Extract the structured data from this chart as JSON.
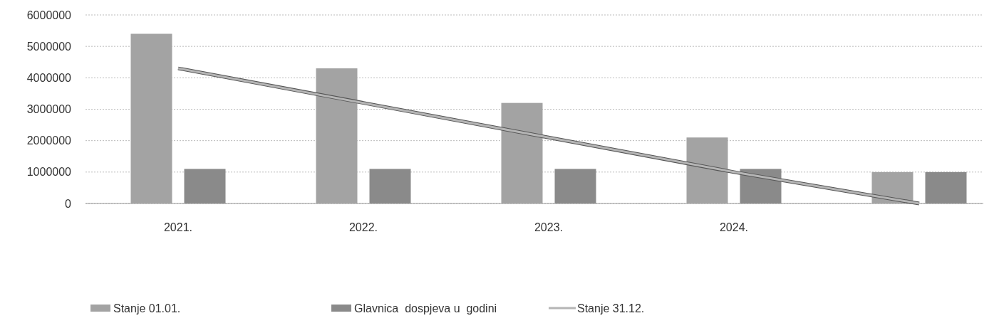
{
  "chart_data": {
    "type": "bar",
    "categories": [
      "2021.",
      "2022.",
      "2023.",
      "2024.",
      null
    ],
    "series": [
      {
        "name": "Stanje 01.01.",
        "color": "#a3a3a3",
        "values": [
          5400000,
          4300000,
          3200000,
          2100000,
          1000000
        ]
      },
      {
        "name": "Glavnica  dospjeva u  godini",
        "color": "#8a8a8a",
        "values": [
          1100000,
          1100000,
          1100000,
          1100000,
          1000000
        ]
      },
      {
        "name": "Stanje 31.12.",
        "type": "line",
        "color": "#b5b5b5",
        "values": [
          4300000,
          3200000,
          2100000,
          1000000,
          0
        ]
      }
    ],
    "ylim": [
      0,
      6000000
    ],
    "yticks": [
      0,
      1000000,
      2000000,
      3000000,
      4000000,
      5000000,
      6000000
    ],
    "grid": "y",
    "legend": "bottom",
    "marker": "none",
    "line_style": "solid"
  }
}
